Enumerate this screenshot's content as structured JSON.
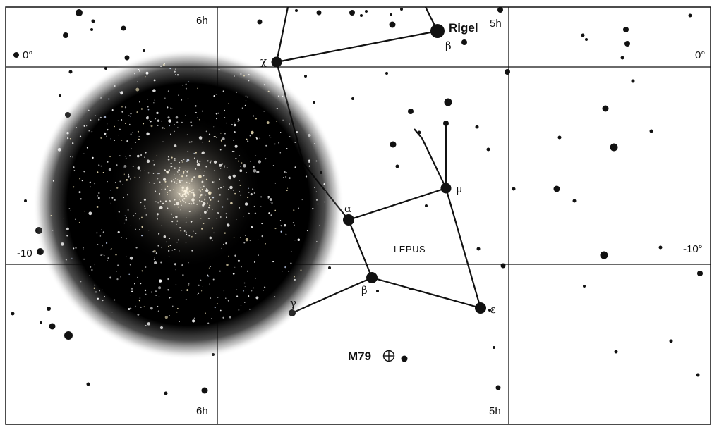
{
  "grid_labels": {
    "ra_6h_top": "6h",
    "ra_5h_top": "5h",
    "ra_6h_bottom": "6h",
    "ra_5h_bottom": "5h",
    "dec_0_left": "0°",
    "dec_0_right": "0°",
    "dec_m10_left": "-10",
    "dec_m10_right": "-10°"
  },
  "constellation_name": "LEPUS",
  "star_names": {
    "rigel": "Rigel"
  },
  "greek_labels": {
    "rigel_beta": "β",
    "chi": "χ",
    "alpha": "α",
    "mu": "μ",
    "beta": "β",
    "gamma": "γ",
    "epsilon": "ε"
  },
  "object_labels": {
    "m79": "M79"
  },
  "colors": {
    "background": "#ffffff",
    "ink": "#111111",
    "cluster_core": "#fff8e6"
  },
  "icons": {
    "m79_marker": "globular-cluster-symbol"
  }
}
